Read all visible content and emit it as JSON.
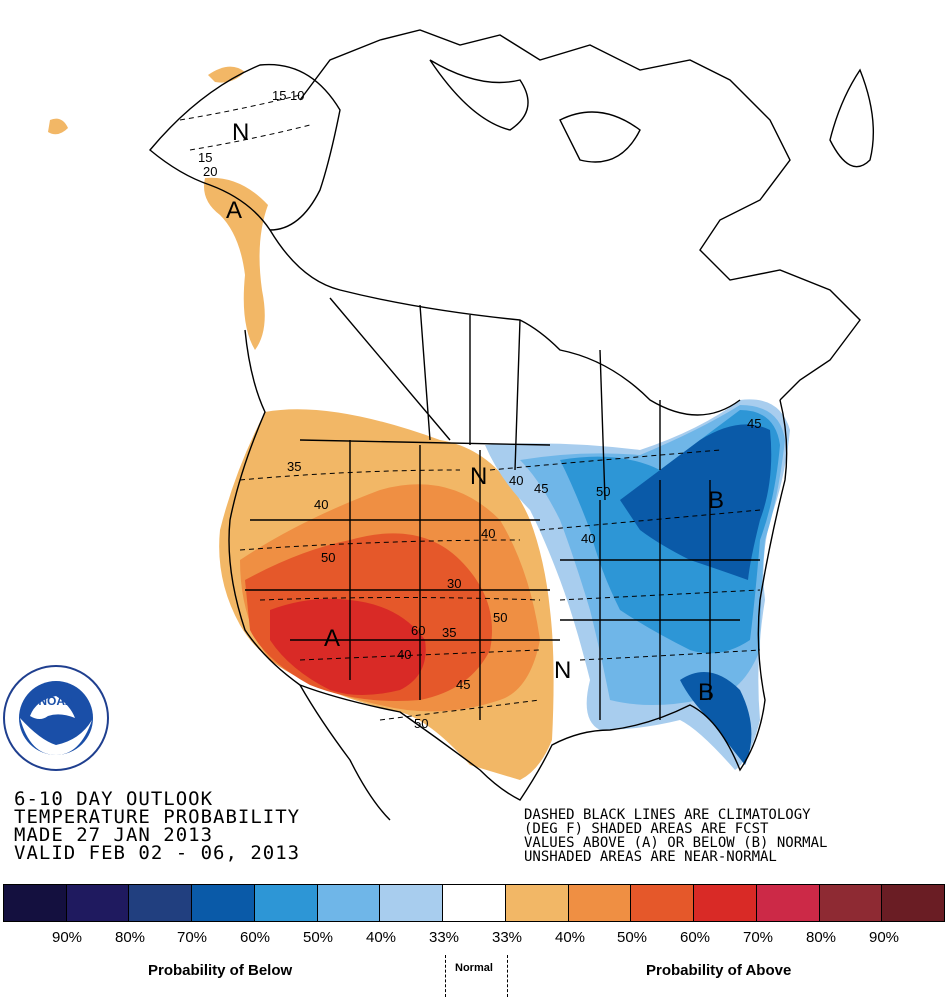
{
  "outlook": {
    "line1": "6-10 DAY OUTLOOK",
    "line2": "TEMPERATURE PROBABILITY",
    "line3": "MADE  27 JAN 2013",
    "line4": "VALID  FEB 02 - 06, 2013"
  },
  "notes": {
    "line1": "DASHED BLACK LINES ARE CLIMATOLOGY",
    "line2": "(DEG F) SHADED AREAS ARE FCST",
    "line3": "VALUES ABOVE (A) OR BELOW (B) NORMAL",
    "line4": "UNSHADED AREAS ARE NEAR-NORMAL"
  },
  "map_letters": {
    "alaska_n": "N",
    "alaska_a": "A",
    "northplains_n": "N",
    "southwest_a": "A",
    "northeast_b": "B",
    "mississippi_n": "N",
    "southeast_b": "B"
  },
  "contour_labels": [
    "15",
    "10",
    "15",
    "20",
    "35",
    "40",
    "40",
    "40",
    "50",
    "30",
    "50",
    "60",
    "35",
    "40",
    "45",
    "50",
    "40",
    "45",
    "50",
    "45"
  ],
  "logo_text": "NOAA",
  "legend": {
    "colors": [
      "#14103f",
      "#1f1a5f",
      "#213f7f",
      "#0a5aa8",
      "#2d96d6",
      "#6fb6e8",
      "#a8cdee",
      "#ffffff",
      "#f2b766",
      "#ef8f43",
      "#e5582a",
      "#d92a26",
      "#cc2947",
      "#8e2a33",
      "#6a1d24"
    ],
    "percent_labels": [
      "90%",
      "80%",
      "70%",
      "60%",
      "50%",
      "40%",
      "33%",
      "33%",
      "40%",
      "50%",
      "60%",
      "70%",
      "80%",
      "90%"
    ],
    "below_label": "Probability of Below",
    "normal_label": "Normal",
    "above_label": "Probability of Above"
  }
}
